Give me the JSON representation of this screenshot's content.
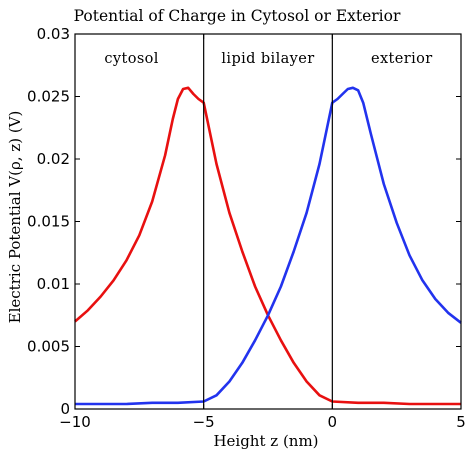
{
  "chart_data": {
    "type": "line",
    "title": "Potential of Charge in Cytosol or Exterior",
    "xlabel": "Height z (nm)",
    "ylabel": "Electric Potential V(ρ, z) (V)",
    "xlim": [
      -10,
      5
    ],
    "ylim": [
      0,
      0.03
    ],
    "xticks": [
      -10,
      -5,
      0,
      5
    ],
    "xtick_labels": [
      "−10",
      "−5",
      "0",
      "5"
    ],
    "yticks": [
      0,
      0.005,
      0.01,
      0.015,
      0.02,
      0.025,
      0.03
    ],
    "ytick_labels": [
      "0",
      "0.005",
      "0.01",
      "0.015",
      "0.02",
      "0.025",
      "0.03"
    ],
    "grid": false,
    "vlines": [
      -5,
      0
    ],
    "region_labels": [
      {
        "text": "cytosol",
        "x": -7.8
      },
      {
        "text": "lipid bilayer",
        "x": -2.5
      },
      {
        "text": "exterior",
        "x": 2.7
      }
    ],
    "series": [
      {
        "color": "#e81010",
        "x": [
          -10,
          -9.5,
          -9,
          -8.5,
          -8,
          -7.5,
          -7,
          -6.5,
          -6.2,
          -6,
          -5.8,
          -5.6,
          -5.4,
          -5.2,
          -5.0,
          -5.0,
          -4.5,
          -4,
          -3.5,
          -3,
          -2.5,
          -2,
          -1.5,
          -1,
          -0.5,
          0.0,
          0.0,
          1,
          2,
          3,
          4,
          5
        ],
        "y": [
          0.007,
          0.0079,
          0.009,
          0.0103,
          0.0119,
          0.0139,
          0.0166,
          0.0203,
          0.0232,
          0.0248,
          0.0256,
          0.0257,
          0.0252,
          0.0248,
          0.0245,
          0.0245,
          0.0196,
          0.0157,
          0.0126,
          0.0098,
          0.0075,
          0.0055,
          0.0037,
          0.0022,
          0.0011,
          0.0006,
          0.0006,
          0.0005,
          0.0005,
          0.0004,
          0.0004,
          0.0004
        ]
      },
      {
        "color": "#2233ee",
        "x": [
          -10,
          -9,
          -8,
          -7,
          -6,
          -5.0,
          -5.0,
          -4.5,
          -4,
          -3.5,
          -3,
          -2.5,
          -2,
          -1.5,
          -1,
          -0.5,
          0.0,
          0.0,
          0.2,
          0.4,
          0.6,
          0.8,
          1.0,
          1.2,
          1.5,
          2,
          2.5,
          3,
          3.5,
          4,
          4.5,
          5
        ],
        "y": [
          0.0004,
          0.0004,
          0.0004,
          0.0005,
          0.0005,
          0.0006,
          0.0006,
          0.0011,
          0.0022,
          0.0037,
          0.0055,
          0.0075,
          0.0098,
          0.0126,
          0.0157,
          0.0196,
          0.0245,
          0.0245,
          0.0248,
          0.0252,
          0.0256,
          0.0257,
          0.0255,
          0.0245,
          0.022,
          0.018,
          0.0149,
          0.0123,
          0.0103,
          0.0088,
          0.0077,
          0.0069
        ]
      }
    ]
  }
}
